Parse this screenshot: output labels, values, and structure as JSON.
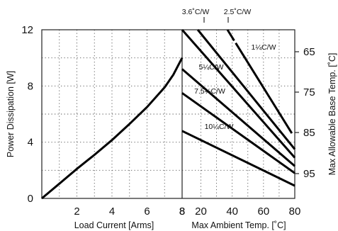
{
  "chart_data": [
    {
      "type": "line",
      "title": "",
      "xlabel": "Load Current  [Arms]",
      "ylabel": "Power Dissipation [W]",
      "xlim": [
        0,
        8
      ],
      "ylim": [
        0,
        12
      ],
      "x_ticks": [
        "2",
        "4",
        "6",
        "8"
      ],
      "y_ticks": [
        "0",
        "4",
        "8",
        "12"
      ],
      "grid": true,
      "series": [
        {
          "x": [
            0,
            1,
            2,
            3,
            4,
            5,
            6,
            7,
            7.5,
            8
          ],
          "y": [
            0,
            1.05,
            2.1,
            3.1,
            4.15,
            5.3,
            6.5,
            7.9,
            8.8,
            10
          ]
        }
      ]
    },
    {
      "type": "line",
      "title": "",
      "xlabel": "Max Ambient Temp. [˚C]",
      "ylabel": "Max Allowable Base Temp. [˚C]",
      "xlim": [
        8,
        80
      ],
      "ylim": [
        0,
        12
      ],
      "x_ticks": [
        "8",
        "20",
        "40",
        "60",
        "80"
      ],
      "y2_ticks": [
        "65",
        "75",
        "85",
        "95"
      ],
      "grid": true,
      "series": [
        {
          "name": "3.6˚C/W",
          "x": [
            8,
            80
          ],
          "y": [
            12,
            2.9
          ]
        },
        {
          "name": "2.5˚C/W",
          "x": [
            18,
            80
          ],
          "y": [
            12,
            3.5
          ]
        },
        {
          "name": "1¼C/W",
          "x": [
            37,
            80
          ],
          "y": [
            12,
            4.3
          ]
        },
        {
          "name": "5¼C/W",
          "x": [
            8,
            80
          ],
          "y": [
            9.2,
            2.3
          ]
        },
        {
          "name": "7.5¼C/W",
          "x": [
            8,
            80
          ],
          "y": [
            7.5,
            1.8
          ]
        },
        {
          "name": "10¼C/W",
          "x": [
            8,
            80
          ],
          "y": [
            4.8,
            0.9
          ]
        }
      ]
    }
  ]
}
